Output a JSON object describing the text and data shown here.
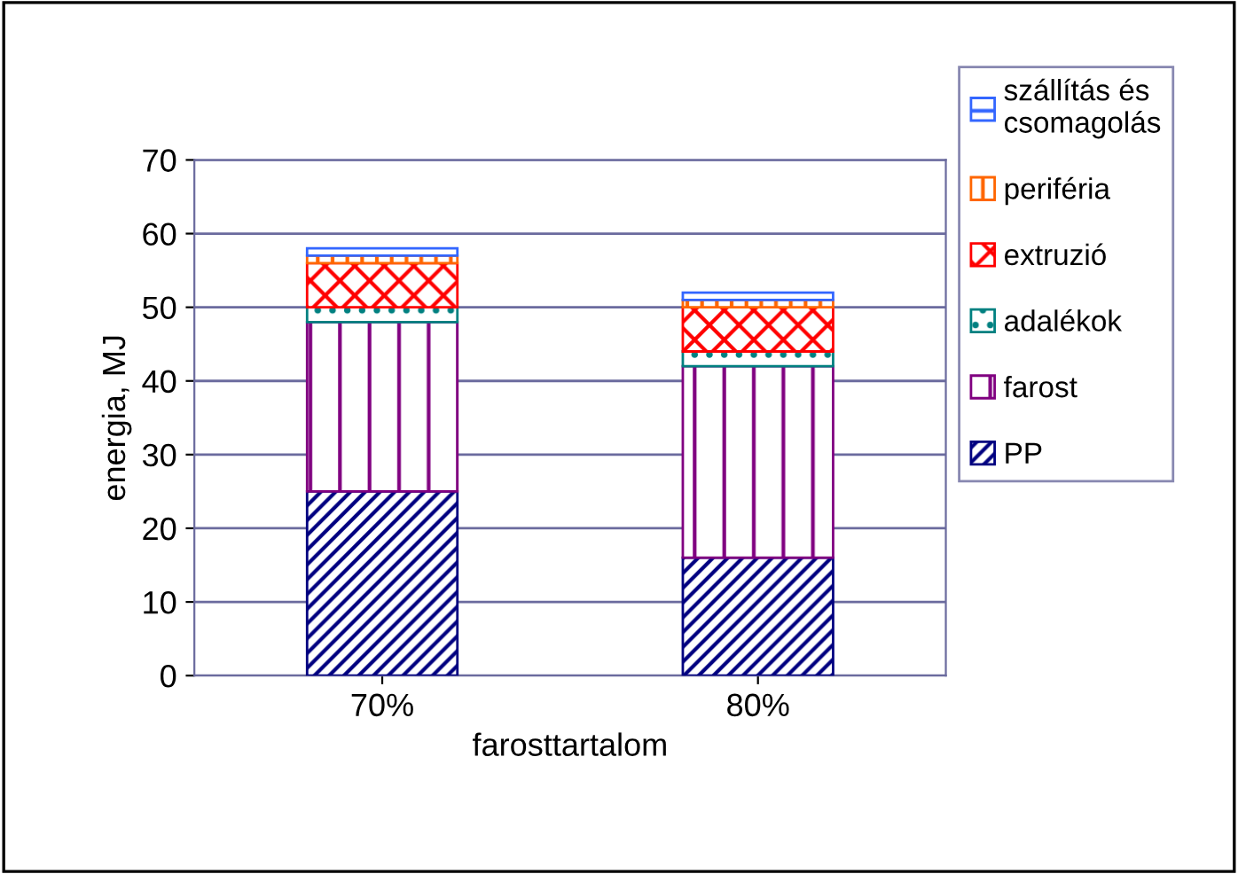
{
  "chart_data": {
    "type": "bar",
    "stacked": true,
    "xlabel": "farosttartalom",
    "ylabel": "energia, MJ",
    "categories": [
      "70%",
      "80%"
    ],
    "series": [
      {
        "name": "PP",
        "color": "#000080",
        "values": [
          25,
          16
        ]
      },
      {
        "name": "farost",
        "color": "#800080",
        "values": [
          23,
          26
        ]
      },
      {
        "name": "adalékok",
        "color": "#008080",
        "values": [
          2,
          2
        ]
      },
      {
        "name": "extruzió",
        "color": "#ff0000",
        "values": [
          6,
          6
        ]
      },
      {
        "name": "periféria",
        "color": "#ff6600",
        "values": [
          1,
          1
        ]
      },
      {
        "name": "szállítás és\ncsomagolás",
        "color": "#3366ff",
        "values": [
          1,
          1
        ]
      }
    ],
    "ylim": [
      0,
      70
    ],
    "yticks": [
      0,
      10,
      20,
      30,
      40,
      50,
      60,
      70
    ],
    "grid": "y",
    "legend": "right"
  }
}
